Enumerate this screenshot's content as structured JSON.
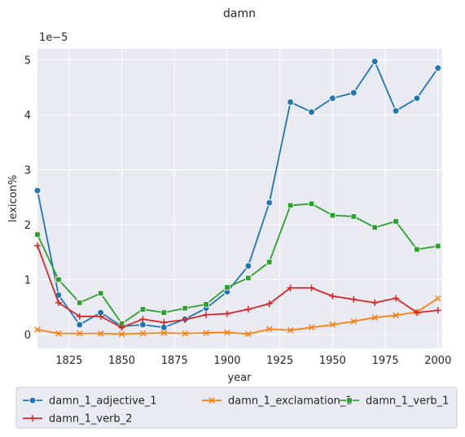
{
  "chart_data": {
    "type": "line",
    "title": "damn",
    "xlabel": "year",
    "ylabel": "lexicon%",
    "y_multiplier_label": "1e−5",
    "xlim": [
      1810,
      2002
    ],
    "ylim": [
      -0.25,
      5.2
    ],
    "x_ticks": [
      1825,
      1850,
      1875,
      1900,
      1925,
      1950,
      1975,
      2000
    ],
    "y_ticks": [
      0,
      1,
      2,
      3,
      4,
      5
    ],
    "grid": true,
    "legend_position": "bottom",
    "x": [
      1810,
      1820,
      1830,
      1840,
      1850,
      1860,
      1870,
      1880,
      1890,
      1900,
      1910,
      1920,
      1930,
      1940,
      1950,
      1960,
      1970,
      1980,
      1990,
      2000
    ],
    "series": [
      {
        "name": "damn_1_adjective_1",
        "color": "#1f77b4",
        "marker": "circle",
        "values": [
          2.62,
          0.72,
          0.18,
          0.4,
          0.15,
          0.18,
          0.13,
          0.28,
          0.48,
          0.78,
          1.25,
          2.4,
          4.23,
          4.05,
          4.3,
          4.4,
          4.97,
          4.07,
          4.3,
          4.85
        ]
      },
      {
        "name": "damn_1_exclamation_1",
        "color": "#ff7f0e",
        "marker": "x",
        "values": [
          0.09,
          0.02,
          0.02,
          0.02,
          0.01,
          0.02,
          0.03,
          0.02,
          0.03,
          0.04,
          0.01,
          0.1,
          0.08,
          0.13,
          0.18,
          0.24,
          0.31,
          0.35,
          0.41,
          0.66
        ]
      },
      {
        "name": "damn_1_verb_1",
        "color": "#2ca02c",
        "marker": "square",
        "values": [
          1.82,
          1.0,
          0.58,
          0.75,
          0.2,
          0.46,
          0.4,
          0.48,
          0.55,
          0.86,
          1.03,
          1.32,
          2.35,
          2.38,
          2.17,
          2.15,
          1.95,
          2.06,
          1.55,
          1.61
        ]
      },
      {
        "name": "damn_1_verb_2",
        "color": "#d62728",
        "marker": "plus",
        "values": [
          1.62,
          0.58,
          0.33,
          0.33,
          0.13,
          0.28,
          0.22,
          0.27,
          0.36,
          0.38,
          0.46,
          0.56,
          0.85,
          0.85,
          0.7,
          0.64,
          0.58,
          0.66,
          0.4,
          0.44
        ]
      }
    ]
  }
}
